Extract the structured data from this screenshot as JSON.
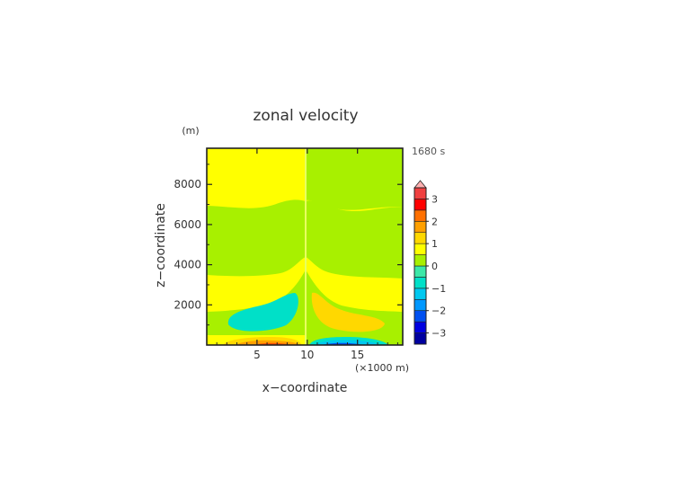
{
  "chart_data": {
    "type": "heatmap",
    "title": "zonal velocity",
    "xlabel": "x−coordinate",
    "ylabel": "z−coordinate",
    "x_unit": "(×1000 m)",
    "y_unit": "(m)",
    "time_label": "1680 s",
    "xlim": [
      0,
      19.5
    ],
    "ylim": [
      0,
      9800
    ],
    "x_ticks": [
      5,
      10,
      15
    ],
    "y_ticks": [
      2000,
      4000,
      6000,
      8000
    ],
    "x_tick_labels": [
      "5",
      "10",
      "15"
    ],
    "y_tick_labels": [
      "2000",
      "4000",
      "6000",
      "8000"
    ],
    "colorbar": {
      "levels": [
        -3.5,
        -3,
        -2.5,
        -2,
        -1.5,
        -1,
        -0.5,
        0,
        0.5,
        1,
        1.5,
        2,
        2.5,
        3,
        3.5
      ],
      "colors": [
        "#0000a0",
        "#0000e0",
        "#0050f0",
        "#0098ff",
        "#00c8f0",
        "#00e0c8",
        "#3ce8a8",
        "#a8f000",
        "#ffff00",
        "#ffd800",
        "#ffa000",
        "#ff7000",
        "#ff0000",
        "#f04040",
        "#ffb0b0"
      ],
      "tick_values": [
        -3,
        -2,
        -1,
        0,
        1,
        2,
        3
      ],
      "tick_labels": [
        "−3",
        "−2",
        "−1",
        "0",
        "1",
        "2",
        "3"
      ],
      "extend": "max"
    },
    "features": [
      {
        "region": "x 0–10, z 8000–9800",
        "value_range": "0 to 0.5"
      },
      {
        "region": "x 10–19.5, z 7200–9800",
        "value_range": "−0.5 to 0"
      },
      {
        "region": "band z ≈4300–6900",
        "value_range": "−0.5 to 0"
      },
      {
        "region": "band z ≈1800–3600",
        "value_range": "0 to 0.5"
      },
      {
        "region": "lobe x ≈2–9, z ≈800–2600",
        "value_range": "−1 to −0.5"
      },
      {
        "region": "lobe x ≈11–17, z ≈800–2600",
        "value_range": "0.5 to 1"
      },
      {
        "region": "surface x ≈2–9, z < 300",
        "value_range": "up to ≈2.5"
      },
      {
        "region": "surface x ≈11–17, z < 300",
        "value_range": "down to ≈−2.5"
      }
    ]
  }
}
